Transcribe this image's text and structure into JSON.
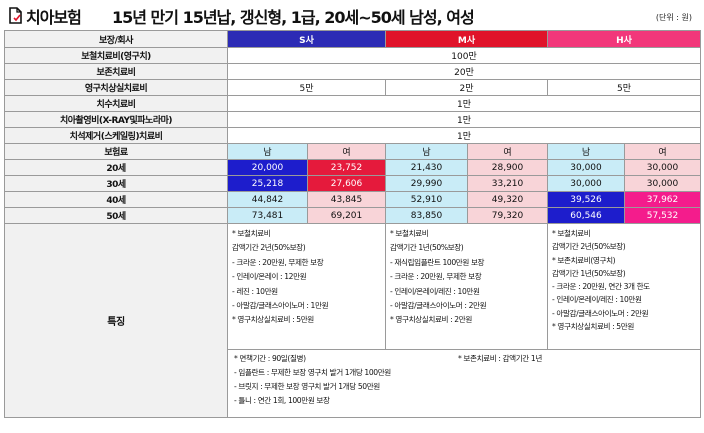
{
  "header": {
    "brand": "치아보험",
    "title": "15년 만기 15년납, 갱신형, 1급, 20세~50세 남성, 여성",
    "unit": "(단위 : 원)"
  },
  "table": {
    "corner": "보장/회사",
    "companies": [
      "S사",
      "M사",
      "H사"
    ],
    "benefits": [
      {
        "label": "보철치료비(영구치)",
        "value": "100만"
      },
      {
        "label": "보존치료비",
        "value": "20만"
      },
      {
        "label": "영구치상실치료비",
        "values": [
          "5만",
          "2만",
          "5만"
        ]
      },
      {
        "label": "치수치료비",
        "value": "1만"
      },
      {
        "label": "치아촬영비(X-RAY및파노라마)",
        "value": "1만"
      },
      {
        "label": "치석제거(스케일링)치료비",
        "value": "1만"
      }
    ],
    "premium_label": "보험료",
    "gender": {
      "male": "남",
      "female": "여"
    },
    "premiums": [
      {
        "age": "20세",
        "values": [
          "20,000",
          "23,752",
          "21,430",
          "28,900",
          "30,000",
          "30,000"
        ]
      },
      {
        "age": "30세",
        "values": [
          "25,218",
          "27,606",
          "29,990",
          "33,210",
          "30,000",
          "30,000"
        ]
      },
      {
        "age": "40세",
        "values": [
          "44,842",
          "43,845",
          "52,910",
          "49,320",
          "39,526",
          "37,962"
        ]
      },
      {
        "age": "50세",
        "values": [
          "73,481",
          "69,201",
          "83,850",
          "79,320",
          "60,546",
          "57,532"
        ]
      }
    ],
    "features_label": "특징",
    "features": {
      "S": [
        "* 보철치료비",
        "감액기간 2년(50%보장)",
        "- 크라운 : 20만원, 무제한 보장",
        "- 인레이/온레이 : 12만원",
        "- 레진 : 10만원",
        "- 아말감/글래스아이노머 : 1만원",
        "* 영구치상실치료비 : 5만원"
      ],
      "M": [
        "* 보철치료비",
        "감액기간 1년(50%보장)",
        "- 재식립임플란트 100만원 보장",
        "- 크라운 : 20만원, 무제한 보장",
        "- 인레이/온레이/레진 : 10만원",
        "- 아말감/글래스아이노머 : 2만원",
        "* 영구치상실치료비 : 2만원"
      ],
      "H": [
        "* 보철치료비",
        "감액기간 2년(50%보장)",
        "* 보존치료비(영구치)",
        "감액기간 1년(50%보장)",
        "- 크라운 : 20만원, 연간 3개 한도",
        "- 인레이/온레이/레진 : 10만원",
        "- 아말감/글래스아이노머 : 2만원",
        "* 영구치상실치료비 : 5만원"
      ]
    },
    "common": {
      "left": [
        "* 면책기간 : 90일(질병)",
        "- 임플란트 : 무제한 보장  영구치 발거 1개당 100만원",
        "- 브릿지 : 무제한 보장   영구치 발거 1개당 50만원",
        "- 틀니 : 연간 1회, 100만원 보장"
      ],
      "right": "* 보존치료비 : 감액기간 1년"
    }
  },
  "colors": {
    "S_header": "#2c2bb5",
    "M_header": "#e0132a",
    "H_header": "#f2377a",
    "male_cell": "#c9ecf7",
    "female_cell": "#f8d4d8",
    "S_highlight_male": "#1d1dcc",
    "S_highlight_female": "#e51a3c",
    "H_highlight_male": "#1d1dcc",
    "H_highlight_female": "#f41c8c"
  }
}
